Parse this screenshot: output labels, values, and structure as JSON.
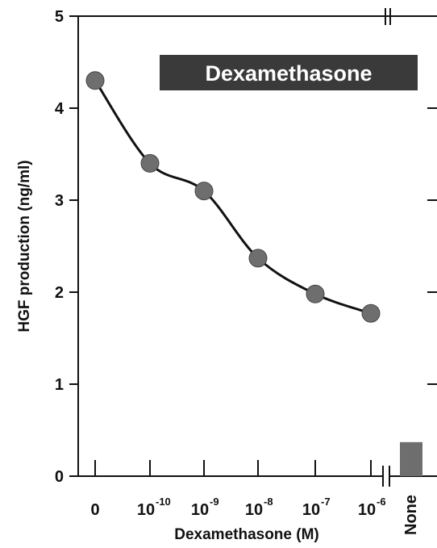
{
  "chart_data": {
    "type": "scatter",
    "title": "",
    "annotation": "Dexamethasone",
    "xlabel": "Dexamethasone (M)",
    "ylabel": "HGF production (ng/ml)",
    "ylim": [
      0,
      5
    ],
    "yticks": [
      "0",
      "1",
      "2",
      "3",
      "4",
      "5"
    ],
    "categories": [
      {
        "base": "0",
        "exp": ""
      },
      {
        "base": "10",
        "exp": "-10"
      },
      {
        "base": "10",
        "exp": "-9"
      },
      {
        "base": "10",
        "exp": "-8"
      },
      {
        "base": "10",
        "exp": "-7"
      },
      {
        "base": "10",
        "exp": "-6"
      }
    ],
    "series": [
      {
        "values": [
          4.3,
          3.4,
          3.1,
          2.37,
          1.98,
          1.77
        ],
        "marker": "circle",
        "color": "#6e6e6e",
        "fit_line": "smooth curve"
      }
    ],
    "control": {
      "label": "None",
      "value": 0.37,
      "type": "bar",
      "color": "#6e6e6e"
    },
    "axis_break": true,
    "grid": false,
    "legend": "none"
  }
}
